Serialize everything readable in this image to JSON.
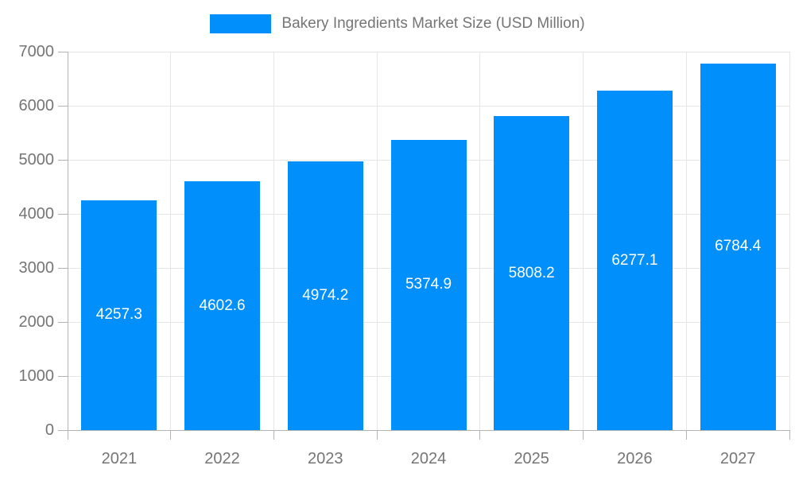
{
  "chart_data": {
    "type": "bar",
    "title": "Bakery Ingredients Market Size (USD Million)",
    "categories": [
      "2021",
      "2022",
      "2023",
      "2024",
      "2025",
      "2026",
      "2027"
    ],
    "values": [
      4257.3,
      4602.6,
      4974.2,
      5374.9,
      5808.2,
      6277.1,
      6784.4
    ],
    "value_labels": [
      "4257.3",
      "4602.6",
      "4974.2",
      "5374.9",
      "5808.2",
      "6277.1",
      "6784.4"
    ],
    "xlabel": "",
    "ylabel": "",
    "ylim": [
      0,
      7000
    ],
    "yticks": [
      0,
      1000,
      2000,
      3000,
      4000,
      5000,
      6000,
      7000
    ],
    "grid": true,
    "legend_position": "top",
    "bar_color": "#008FFB"
  },
  "legend": {
    "label": "Bakery Ingredients Market Size (USD Million)"
  },
  "colors": {
    "bar": "#008FFB",
    "grid": "#e6e6e6",
    "axis_line": "#b3b3b3",
    "axis_text": "#757575",
    "value_text": "#ffffff",
    "background": "#ffffff"
  }
}
